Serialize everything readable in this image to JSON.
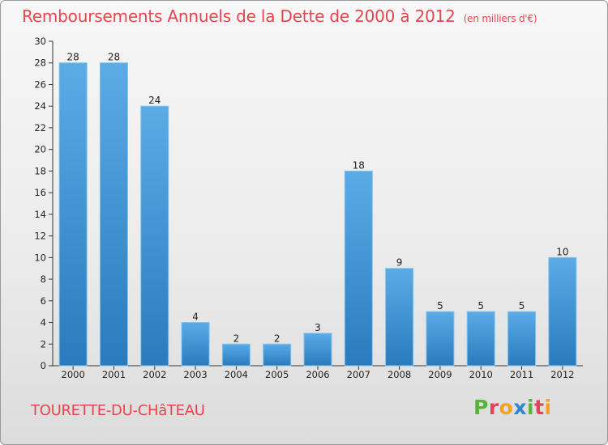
{
  "header": {
    "title": "Remboursements Annuels de la Dette de 2000 à 2012",
    "unit": "(en milliers d'€)"
  },
  "footer": {
    "commune": "TOURETTE-DU-CHâTEAU",
    "brand": [
      "P",
      "r",
      "o",
      "x",
      "i",
      "t",
      "i"
    ]
  },
  "colors": {
    "title": "#e6454f",
    "bar_light": "#5aabe6",
    "bar_dark": "#2a7bbd",
    "brand": [
      "#59b23b",
      "#e2445c",
      "#f4a11d",
      "#2b86d6",
      "#59b23b",
      "#e2445c",
      "#f4a11d"
    ]
  },
  "chart_data": {
    "type": "bar",
    "title": "Remboursements Annuels de la Dette de 2000 à 2012",
    "xlabel": "",
    "ylabel": "",
    "categories": [
      "2000",
      "2001",
      "2002",
      "2003",
      "2004",
      "2005",
      "2006",
      "2007",
      "2008",
      "2009",
      "2010",
      "2011",
      "2012"
    ],
    "values": [
      28,
      28,
      24,
      4,
      2,
      2,
      3,
      18,
      9,
      5,
      5,
      5,
      10
    ],
    "ylim": [
      0,
      30
    ],
    "yticks": [
      0,
      2,
      4,
      6,
      8,
      10,
      12,
      14,
      16,
      18,
      20,
      22,
      24,
      26,
      28,
      30
    ],
    "grid": false,
    "data_labels": true
  }
}
